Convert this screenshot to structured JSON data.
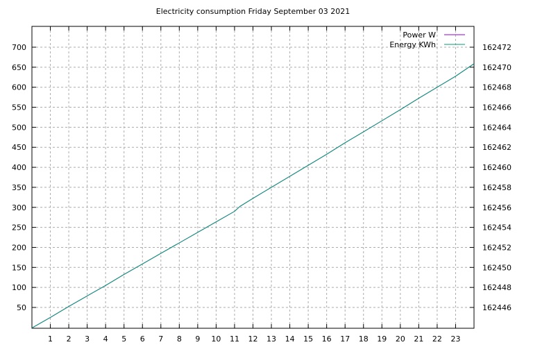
{
  "chart_data": {
    "type": "line",
    "title": "Electricity consumption Friday September 03 2021",
    "x_axis": {
      "range": [
        0,
        24
      ],
      "tick_labels": [
        "1",
        "2",
        "3",
        "4",
        "5",
        "6",
        "7",
        "8",
        "9",
        "10",
        "11",
        "12",
        "13",
        "14",
        "15",
        "16",
        "17",
        "18",
        "19",
        "20",
        "21",
        "22",
        "23"
      ],
      "grid": true
    },
    "y_axis_left": {
      "associated_series": "Power W",
      "tick_labels": [
        "50",
        "100",
        "150",
        "200",
        "250",
        "300",
        "350",
        "400",
        "450",
        "500",
        "550",
        "600",
        "650",
        "700"
      ],
      "tick_values": [
        50,
        100,
        150,
        200,
        250,
        300,
        350,
        400,
        450,
        500,
        550,
        600,
        650,
        700
      ]
    },
    "y_axis_right": {
      "associated_series": "Energy KWh",
      "tick_labels": [
        "162446",
        "162448",
        "162450",
        "162452",
        "162454",
        "162456",
        "162458",
        "162460",
        "162462",
        "162464",
        "162466",
        "162468",
        "162470",
        "162472"
      ],
      "tick_values": [
        162446,
        162448,
        162450,
        162452,
        162454,
        162456,
        162458,
        162460,
        162462,
        162464,
        162466,
        162468,
        162470,
        162472
      ]
    },
    "legend": {
      "position": "top-right-inside",
      "entries": [
        {
          "label": "Power W",
          "color": "#9400d3"
        },
        {
          "label": "Energy KWh",
          "color": "#009e73"
        }
      ]
    },
    "series": [
      {
        "name": "Power W",
        "color": "#9400d3",
        "axis": "left",
        "visible_trace": false,
        "note": "trace coincides with Energy KWh line and is hidden beneath it"
      },
      {
        "name": "Energy KWh",
        "color": "#009e73",
        "axis": "right",
        "points": [
          [
            0,
            162443.95
          ],
          [
            1,
            162445.0
          ],
          [
            2,
            162446.1
          ],
          [
            3,
            162447.15
          ],
          [
            4,
            162448.2
          ],
          [
            5,
            162449.3
          ],
          [
            6,
            162450.35
          ],
          [
            7,
            162451.4
          ],
          [
            8,
            162452.45
          ],
          [
            9,
            162453.5
          ],
          [
            10,
            162454.55
          ],
          [
            11,
            162455.6
          ],
          [
            11.3,
            162456.1
          ],
          [
            12,
            162456.9
          ],
          [
            13,
            162458.0
          ],
          [
            14,
            162459.1
          ],
          [
            15,
            162460.2
          ],
          [
            16,
            162461.3
          ],
          [
            17,
            162462.45
          ],
          [
            18,
            162463.55
          ],
          [
            19,
            162464.65
          ],
          [
            20,
            162465.75
          ],
          [
            21,
            162466.9
          ],
          [
            22,
            162468.0
          ],
          [
            23,
            162469.1
          ],
          [
            24,
            162470.35
          ]
        ]
      }
    ],
    "plot_style": {
      "background": "#ffffff",
      "grid_color": "#ababab",
      "border_color": "#000000",
      "text_color": "#000000"
    }
  }
}
